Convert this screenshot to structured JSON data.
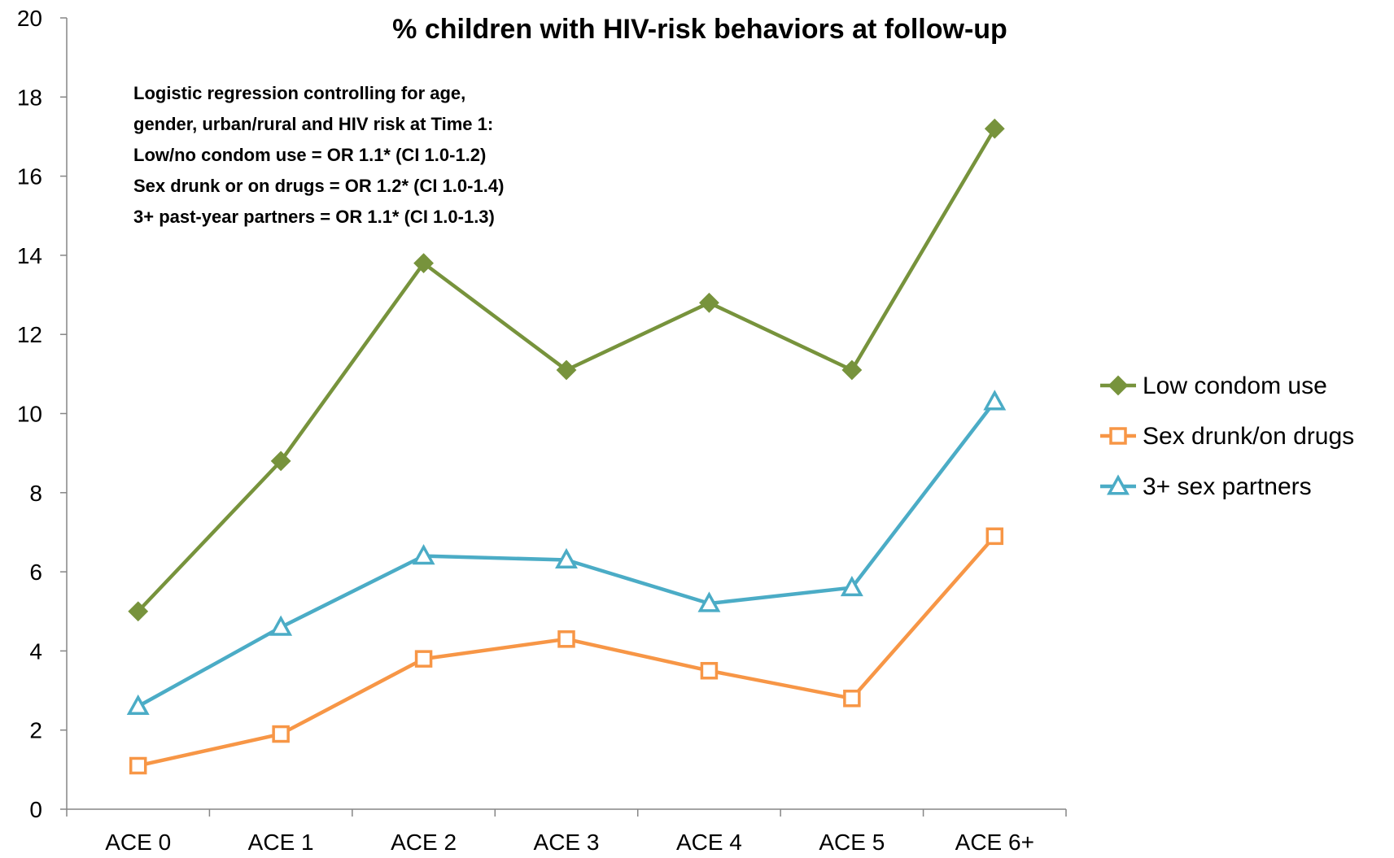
{
  "chart_data": {
    "type": "line",
    "title": "% children with HIV-risk behaviors at follow-up",
    "categories": [
      "ACE 0",
      "ACE 1",
      "ACE 2",
      "ACE 3",
      "ACE 4",
      "ACE 5",
      "ACE 6+"
    ],
    "ylim": [
      0,
      20
    ],
    "yticks": [
      "0",
      "2",
      "4",
      "6",
      "8",
      "10",
      "12",
      "14",
      "16",
      "18",
      "20"
    ],
    "grid": false,
    "legend_position": "right",
    "annotation": [
      "Logistic regression controlling for age,",
      "gender, urban/rural and HIV risk at Time 1:",
      "Low/no condom use = OR 1.1* (CI 1.0-1.2)",
      "Sex drunk or on drugs = OR 1.2* (CI 1.0-1.4)",
      "3+ past-year partners = OR 1.1* (CI 1.0-1.3)"
    ],
    "series": [
      {
        "name": "Low condom use",
        "color": "#77933C",
        "marker": "diamond",
        "values": [
          5.0,
          8.8,
          13.8,
          11.1,
          12.8,
          11.1,
          17.2
        ]
      },
      {
        "name": "Sex drunk/on drugs",
        "color": "#F79646",
        "marker": "square",
        "values": [
          1.1,
          1.9,
          3.8,
          4.3,
          3.5,
          2.8,
          6.9
        ]
      },
      {
        "name": "3+ sex partners",
        "color": "#4BACC6",
        "marker": "triangle",
        "values": [
          2.6,
          4.6,
          6.4,
          6.3,
          5.2,
          5.6,
          10.3
        ]
      }
    ]
  }
}
